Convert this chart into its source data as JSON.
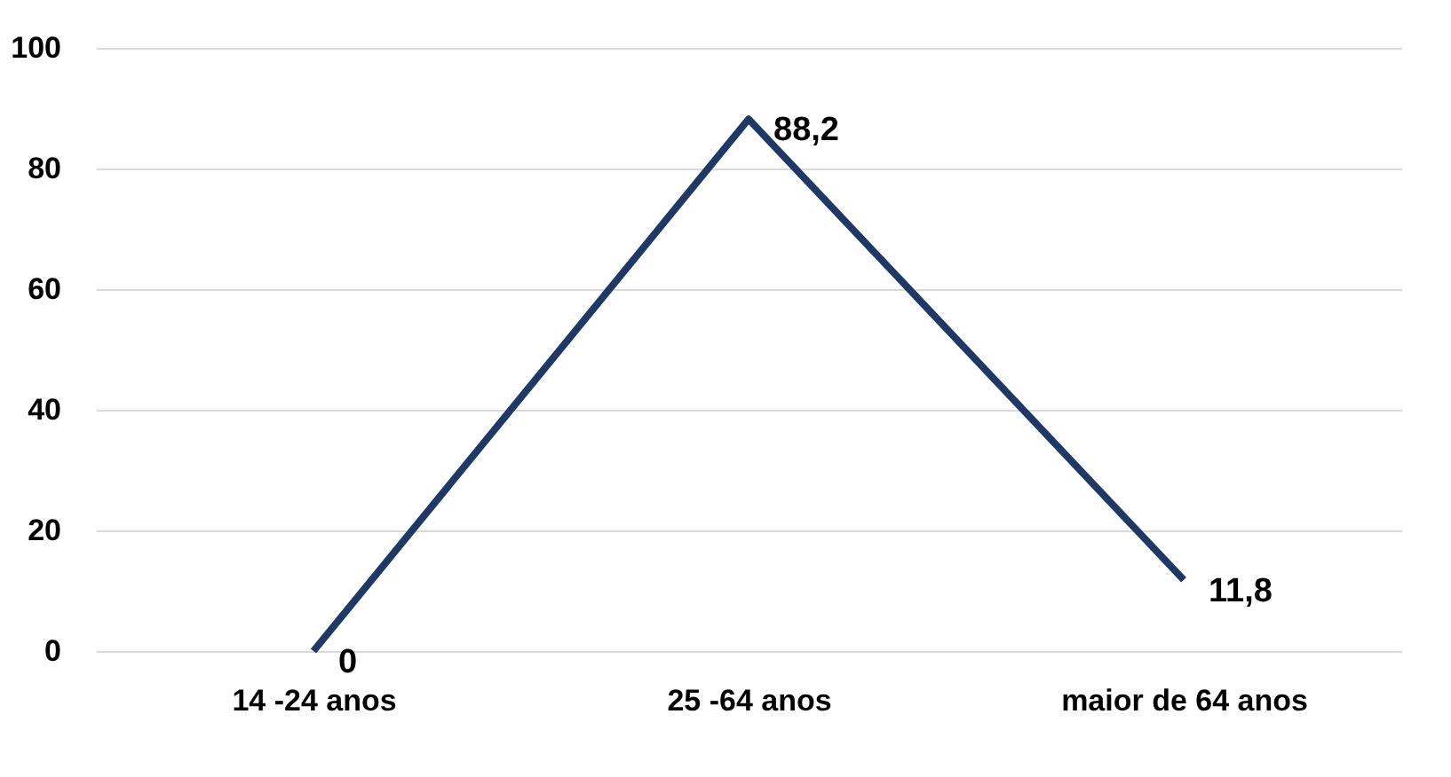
{
  "chart_data": {
    "type": "line",
    "categories": [
      "14 -24 anos",
      "25 -64 anos",
      "maior de 64 anos"
    ],
    "series": [
      {
        "color": "#203864",
        "values": [
          0,
          88.2,
          11.8
        ],
        "value_labels": [
          "0",
          "88,2",
          "11,8"
        ]
      }
    ],
    "ylim": [
      0,
      100
    ],
    "yticks": [
      0,
      20,
      40,
      60,
      80,
      100
    ],
    "grid": "y",
    "legend": false,
    "marker": "none",
    "line_style": "solid"
  }
}
